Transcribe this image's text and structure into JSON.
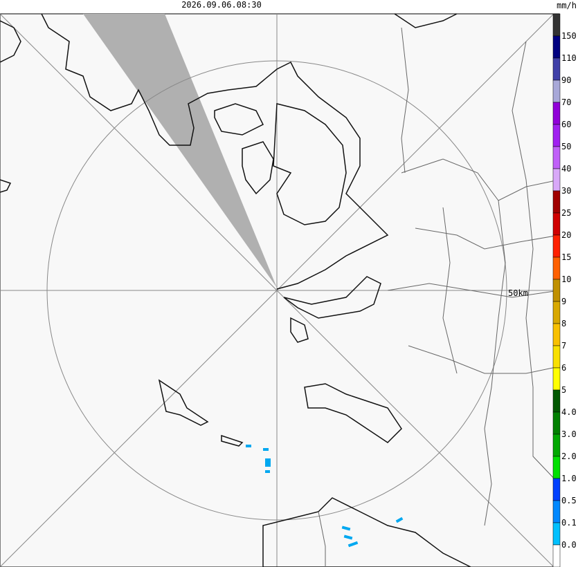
{
  "header": {
    "timestamp": "2026.09.06.08:30",
    "unit": "mm/h"
  },
  "map": {
    "range_label": "50km"
  },
  "legend": {
    "colors": [
      "#333333",
      "#000080",
      "#3f3fa8",
      "#a8a8d8",
      "#9000d8",
      "#a020f0",
      "#c060f8",
      "#d8a8f8",
      "#a00000",
      "#d00000",
      "#ff2000",
      "#ff6000",
      "#c09000",
      "#d8a800",
      "#f8c000",
      "#f8e000",
      "#ffff00",
      "#005800",
      "#008000",
      "#00a800",
      "#00e000",
      "#0040ff",
      "#0088ff",
      "#00c0ff",
      "#ffffff"
    ],
    "labels": [
      "150",
      "110",
      "90",
      "70",
      "60",
      "50",
      "40",
      "30",
      "25",
      "20",
      "15",
      "10",
      "9",
      "8",
      "7",
      "6",
      "5",
      "4.0",
      "3.0",
      "2.0",
      "1.0",
      "0.5",
      "0.1",
      "0.0"
    ]
  }
}
